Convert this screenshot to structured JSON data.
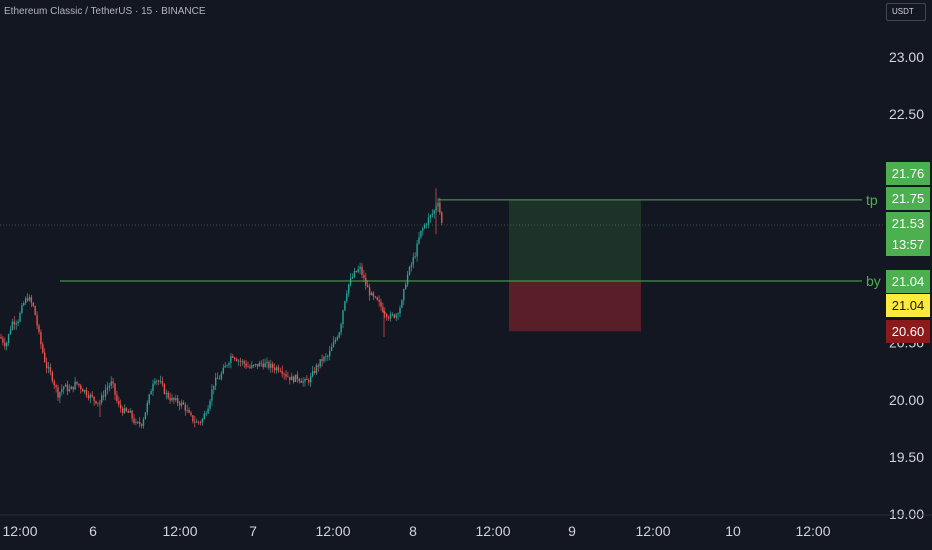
{
  "header": {
    "title": "Ethereum Classic / TetherUS · 15 · BINANCE",
    "currency": "USDT"
  },
  "colors": {
    "background": "#131722",
    "up": "#26a69a",
    "down": "#ef5350",
    "line": "#4caf50",
    "tag_green": "#4caf50",
    "tag_yellow": "#ffeb3b",
    "tag_red": "#8b1a1a"
  },
  "chart_data": {
    "type": "candlestick",
    "symbol": "ETCUSDT",
    "interval": "15",
    "exchange": "BINANCE",
    "ylim": [
      19.0,
      23.3
    ],
    "y_ticks": [
      19.0,
      19.5,
      20.0,
      20.5,
      22.5,
      23.0
    ],
    "y_tick_labels": [
      "19.00",
      "19.50",
      "20.00",
      "20.50",
      "22.50",
      "23.00"
    ],
    "x_ticks": [
      "12:00",
      "6",
      "12:00",
      "7",
      "12:00",
      "8",
      "12:00",
      "9",
      "12:00",
      "10",
      "12:00"
    ],
    "close_path": [
      [
        0,
        20.55
      ],
      [
        6,
        20.48
      ],
      [
        12,
        20.68
      ],
      [
        18,
        20.7
      ],
      [
        24,
        20.85
      ],
      [
        28,
        20.9
      ],
      [
        34,
        20.8
      ],
      [
        40,
        20.52
      ],
      [
        46,
        20.3
      ],
      [
        52,
        20.2
      ],
      [
        58,
        20.05
      ],
      [
        64,
        20.12
      ],
      [
        70,
        20.08
      ],
      [
        76,
        20.15
      ],
      [
        82,
        20.1
      ],
      [
        88,
        20.05
      ],
      [
        94,
        20.0
      ],
      [
        100,
        19.98
      ],
      [
        106,
        20.1
      ],
      [
        112,
        20.15
      ],
      [
        118,
        19.95
      ],
      [
        124,
        19.9
      ],
      [
        130,
        19.88
      ],
      [
        136,
        19.78
      ],
      [
        142,
        19.8
      ],
      [
        148,
        19.98
      ],
      [
        154,
        20.2
      ],
      [
        160,
        20.15
      ],
      [
        166,
        20.05
      ],
      [
        172,
        20.0
      ],
      [
        178,
        19.98
      ],
      [
        184,
        19.95
      ],
      [
        190,
        19.85
      ],
      [
        196,
        19.8
      ],
      [
        202,
        19.82
      ],
      [
        208,
        19.95
      ],
      [
        214,
        20.15
      ],
      [
        220,
        20.2
      ],
      [
        226,
        20.3
      ],
      [
        232,
        20.4
      ],
      [
        238,
        20.35
      ],
      [
        244,
        20.32
      ],
      [
        250,
        20.28
      ],
      [
        256,
        20.3
      ],
      [
        262,
        20.32
      ],
      [
        268,
        20.3
      ],
      [
        274,
        20.28
      ],
      [
        280,
        20.28
      ],
      [
        286,
        20.22
      ],
      [
        292,
        20.18
      ],
      [
        298,
        20.2
      ],
      [
        304,
        20.15
      ],
      [
        310,
        20.18
      ],
      [
        316,
        20.28
      ],
      [
        322,
        20.35
      ],
      [
        328,
        20.38
      ],
      [
        334,
        20.5
      ],
      [
        340,
        20.62
      ],
      [
        344,
        20.85
      ],
      [
        348,
        21.0
      ],
      [
        354,
        21.1
      ],
      [
        360,
        21.15
      ],
      [
        366,
        21.0
      ],
      [
        372,
        20.9
      ],
      [
        378,
        20.85
      ],
      [
        384,
        20.78
      ],
      [
        390,
        20.72
      ],
      [
        396,
        20.75
      ],
      [
        402,
        20.85
      ],
      [
        406,
        21.05
      ],
      [
        410,
        21.15
      ],
      [
        416,
        21.3
      ],
      [
        420,
        21.45
      ],
      [
        426,
        21.55
      ],
      [
        430,
        21.6
      ],
      [
        434,
        21.65
      ],
      [
        438,
        21.75
      ],
      [
        442,
        21.53
      ]
    ],
    "price_lines": [
      {
        "label": "tp",
        "value": 21.75
      },
      {
        "label": "by",
        "value": 21.04
      }
    ],
    "position": {
      "entry": 21.04,
      "target": 21.75,
      "stop": 20.6
    },
    "price_labels": [
      {
        "value": 21.76,
        "text": "21.76",
        "color": "green"
      },
      {
        "value": 21.75,
        "text": "21.75",
        "color": "green"
      },
      {
        "value": 21.53,
        "text": "21.53",
        "color": "green"
      },
      {
        "value": 21.53,
        "text": "13:57",
        "color": "green"
      },
      {
        "value": 21.04,
        "text": "21.04",
        "color": "green"
      },
      {
        "value": 21.04,
        "text": "21.04",
        "color": "yellow"
      },
      {
        "value": 20.6,
        "text": "20.60",
        "color": "red"
      }
    ]
  }
}
